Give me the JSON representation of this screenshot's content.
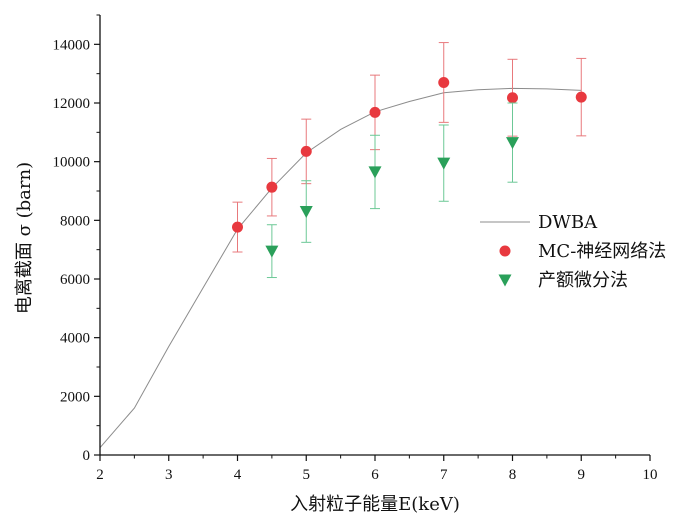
{
  "chart_data": {
    "type": "scatter",
    "xlabel": "入射粒子能量E(keV)",
    "ylabel": "电离截面 σ (barn)",
    "xlim": [
      2,
      10
    ],
    "ylim": [
      0,
      15000
    ],
    "x_ticks": [
      "2",
      "3",
      "4",
      "5",
      "6",
      "7",
      "8",
      "9",
      "10"
    ],
    "y_ticks": [
      "0",
      "2000",
      "4000",
      "6000",
      "8000",
      "10000",
      "12000",
      "14000"
    ],
    "grid": false,
    "legend_position": "right",
    "series": [
      {
        "name": "DWBA",
        "kind": "line",
        "color": "#8c8c8c",
        "x": [
          2.0,
          2.5,
          3.0,
          3.5,
          4.0,
          4.5,
          5.0,
          5.5,
          6.0,
          6.5,
          7.0,
          7.5,
          8.0,
          8.5,
          9.0
        ],
        "y": [
          250,
          1600,
          3700,
          5700,
          7700,
          9100,
          10300,
          11100,
          11700,
          12050,
          12350,
          12450,
          12500,
          12480,
          12430
        ]
      },
      {
        "name": "MC-神经网络法",
        "kind": "scatter",
        "marker": "circle",
        "color": "#e8393f",
        "error_color": "#e8797c",
        "x": [
          4.0,
          4.5,
          5.0,
          6.0,
          7.0,
          8.0,
          9.0
        ],
        "y": [
          7770,
          9130,
          10350,
          11680,
          12700,
          12180,
          12200
        ],
        "error": [
          850,
          980,
          1100,
          1270,
          1360,
          1310,
          1320
        ]
      },
      {
        "name": "产额微分法",
        "kind": "scatter",
        "marker": "triangle-down",
        "color": "#2aa05a",
        "error_color": "#6cc896",
        "x": [
          4.5,
          5.0,
          6.0,
          7.0,
          8.0
        ],
        "y": [
          6950,
          8300,
          9650,
          9950,
          10650
        ],
        "error": [
          900,
          1050,
          1250,
          1300,
          1350
        ]
      }
    ]
  }
}
